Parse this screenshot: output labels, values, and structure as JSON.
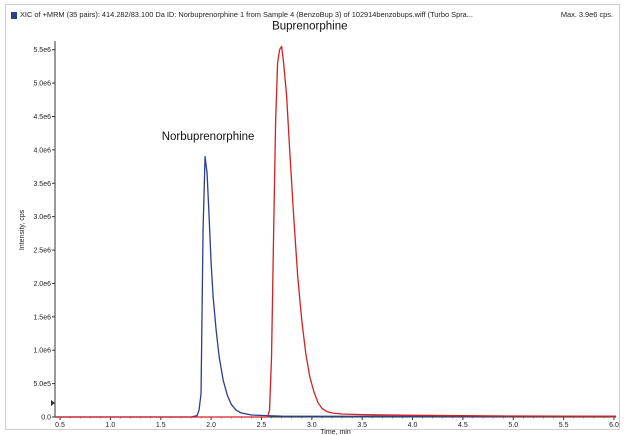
{
  "header": {
    "title": "XIC of +MRM (35 pairs): 414.282/83.100 Da ID: Norbuprenorphine 1 from Sample 4 (BenzoBup 3) of 102914benzobups.wiff (Turbo Spra...",
    "max": "Max. 3.9e6 cps."
  },
  "chart_data": {
    "type": "line",
    "xlabel": "Time, min",
    "ylabel": "Intensity, cps",
    "xlim": [
      0.45,
      6.02
    ],
    "ylim": [
      0,
      5600000.0
    ],
    "x_ticks": [
      {
        "v": 0.5,
        "label": "0.5"
      },
      {
        "v": 1.0,
        "label": "1.0"
      },
      {
        "v": 1.5,
        "label": "1.5"
      },
      {
        "v": 2.0,
        "label": "2.0"
      },
      {
        "v": 2.5,
        "label": "2.5"
      },
      {
        "v": 3.0,
        "label": "3.0"
      },
      {
        "v": 3.5,
        "label": "3.5"
      },
      {
        "v": 4.0,
        "label": "4.0"
      },
      {
        "v": 4.5,
        "label": "4.5"
      },
      {
        "v": 5.0,
        "label": "5.0"
      },
      {
        "v": 5.5,
        "label": "5.5"
      },
      {
        "v": 6.0,
        "label": "6.0"
      }
    ],
    "y_ticks": [
      {
        "v": 0,
        "label": "0.0"
      },
      {
        "v": 500000,
        "label": "5.0e5"
      },
      {
        "v": 1000000,
        "label": "1.0e6"
      },
      {
        "v": 1500000,
        "label": "1.5e6"
      },
      {
        "v": 2000000,
        "label": "2.0e6"
      },
      {
        "v": 2500000,
        "label": "2.5e6"
      },
      {
        "v": 3000000,
        "label": "3.0e6"
      },
      {
        "v": 3500000,
        "label": "3.5e6"
      },
      {
        "v": 4000000,
        "label": "4.0e6"
      },
      {
        "v": 4500000,
        "label": "4.5e6"
      },
      {
        "v": 5000000,
        "label": "5.0e6"
      },
      {
        "v": 5500000,
        "label": "5.5e6"
      }
    ],
    "series": [
      {
        "name": "Norbuprenorphine",
        "color": "#2b3f8c",
        "x": [
          0.45,
          1.8,
          1.86,
          1.88,
          1.9,
          1.92,
          1.94,
          1.96,
          1.98,
          2.0,
          2.02,
          2.05,
          2.08,
          2.12,
          2.16,
          2.2,
          2.25,
          2.3,
          2.4,
          2.55,
          2.7,
          3.0,
          4.0,
          5.0,
          6.02
        ],
        "y": [
          0,
          0,
          20000,
          100000,
          350000,
          2800000,
          3900000,
          3650000,
          3000000,
          2300000,
          1800000,
          1300000,
          900000,
          550000,
          330000,
          190000,
          100000,
          60000,
          30000,
          20000,
          12000,
          10000,
          10000,
          10000,
          10000
        ]
      },
      {
        "name": "Buprenorphine",
        "color": "#d42020",
        "x": [
          0.45,
          2.56,
          2.58,
          2.6,
          2.62,
          2.64,
          2.66,
          2.68,
          2.7,
          2.72,
          2.75,
          2.78,
          2.82,
          2.86,
          2.9,
          2.94,
          2.98,
          3.02,
          3.06,
          3.1,
          3.15,
          3.2,
          3.3,
          3.5,
          4.0,
          5.0,
          6.02
        ],
        "y": [
          0,
          0,
          100000,
          900000,
          2700000,
          4400000,
          5300000,
          5500000,
          5550000,
          5300000,
          4800000,
          4000000,
          3000000,
          2100000,
          1450000,
          950000,
          600000,
          380000,
          220000,
          130000,
          80000,
          60000,
          45000,
          35000,
          25000,
          15000,
          10000
        ]
      }
    ],
    "annotations": [
      {
        "text": "Norbuprenorphine",
        "x": 1.97,
        "y": 4150000
      },
      {
        "text": "Buprenorphine",
        "x": 2.98,
        "y": 5800000
      }
    ]
  }
}
